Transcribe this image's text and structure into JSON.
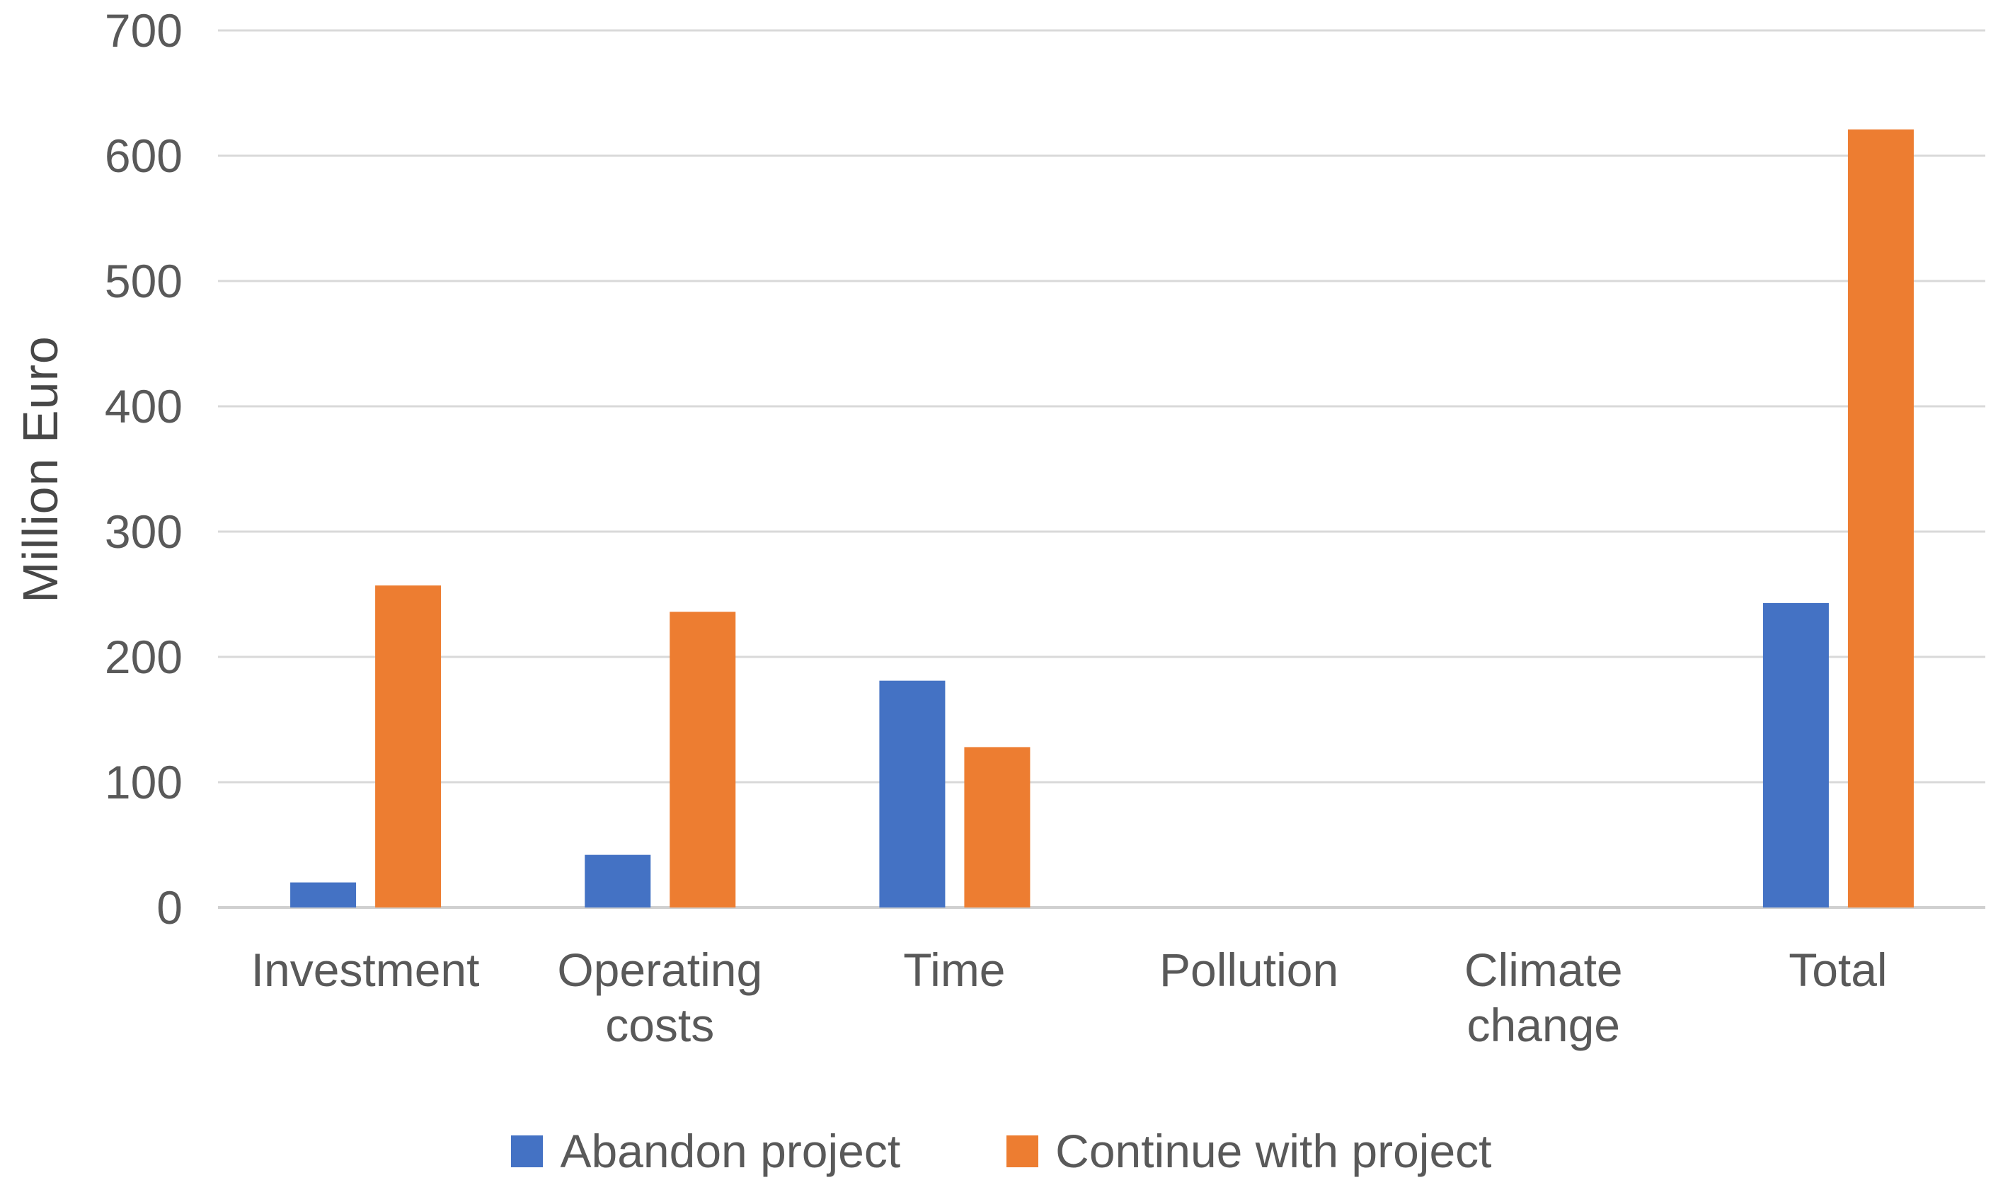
{
  "chart_data": {
    "type": "bar",
    "title": "",
    "ylabel": "Million Euro",
    "xlabel": "",
    "categories": [
      "Investment",
      "Operating costs",
      "Time",
      "Pollution",
      "Climate change",
      "Total"
    ],
    "series": [
      {
        "name": "Abandon project",
        "color": "#4472C4",
        "values": [
          20,
          42,
          181,
          0,
          0,
          243
        ]
      },
      {
        "name": "Continue with project",
        "color": "#ED7D31",
        "values": [
          257,
          236,
          128,
          0,
          0,
          621
        ]
      }
    ],
    "ylim": [
      0,
      700
    ],
    "ytick_step": 100,
    "yticks": [
      0,
      100,
      200,
      300,
      400,
      500,
      600,
      700
    ],
    "grid": true,
    "legend_position": "bottom",
    "grid_color": "#D9D9D9",
    "axis_line_color": "#D0D0D0",
    "text_color": "#595959",
    "axis_title_color": "#474747",
    "background": "#FFFFFF"
  }
}
